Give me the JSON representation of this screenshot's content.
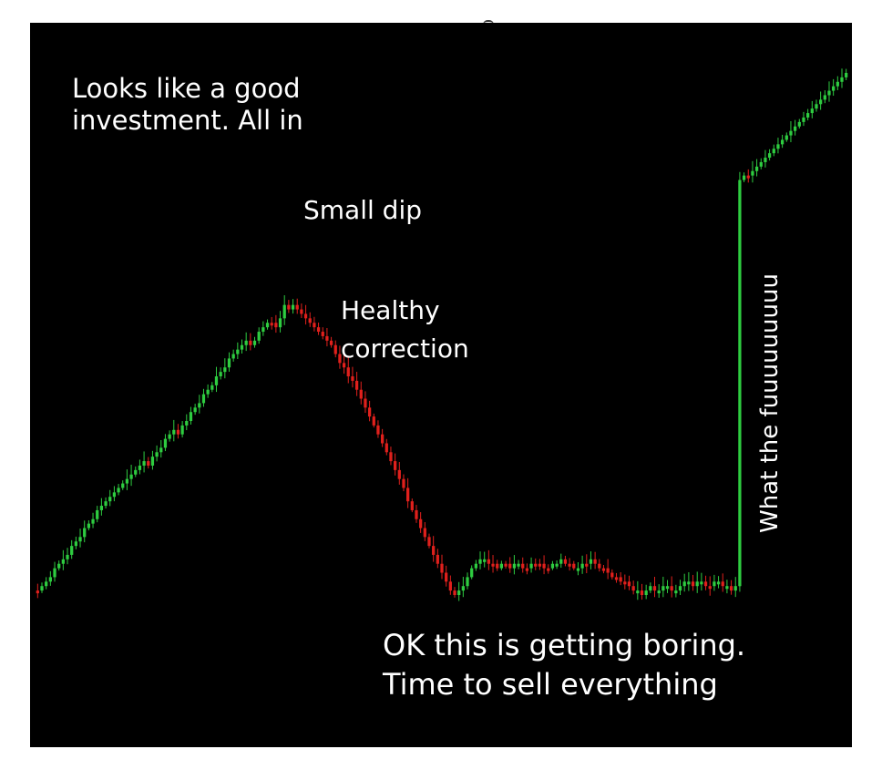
{
  "annotations": {
    "all_in": "Looks like a good\ninvestment. All in",
    "small_dip": "Small dip",
    "healthy_correction": "Healthy\ncorrection",
    "boring": "OK this is getting boring.\nTime to sell everything",
    "wtf": "What the fuuuuuuuuu"
  },
  "colors": {
    "background": "#000000",
    "up": "#2ecc40",
    "down": "#e0201c",
    "text": "#ffffff"
  },
  "chart_data": {
    "type": "candlestick",
    "grid": false,
    "axes_visible": false,
    "segments": [
      {
        "phase": "rise",
        "start": 0,
        "end": 0.62,
        "up_ratio": 0.78
      },
      {
        "phase": "peak",
        "start": 0.62,
        "end": 0.66,
        "up_ratio": 0.5
      },
      {
        "phase": "small dip",
        "start": 0.66,
        "end": 0.58,
        "up_ratio": 0.2
      },
      {
        "phase": "healthy correction",
        "start": 0.58,
        "end": 0.01,
        "up_ratio": 0.05
      },
      {
        "phase": "sideways",
        "start": 0.01,
        "end": 0.04,
        "up_ratio": 0.5
      },
      {
        "phase": "moon",
        "start": 0.04,
        "end": 1.0,
        "up_ratio": 0.9
      }
    ],
    "candles": [
      0.02,
      0.03,
      0.04,
      0.05,
      0.07,
      0.08,
      0.09,
      0.1,
      0.12,
      0.13,
      0.14,
      0.16,
      0.17,
      0.18,
      0.2,
      0.21,
      0.22,
      0.23,
      0.24,
      0.25,
      0.26,
      0.27,
      0.28,
      0.29,
      0.3,
      0.31,
      0.3,
      0.32,
      0.33,
      0.34,
      0.36,
      0.37,
      0.38,
      0.37,
      0.39,
      0.4,
      0.42,
      0.43,
      0.44,
      0.46,
      0.47,
      0.48,
      0.5,
      0.51,
      0.52,
      0.54,
      0.55,
      0.56,
      0.57,
      0.58,
      0.57,
      0.58,
      0.6,
      0.61,
      0.62,
      0.62,
      0.61,
      0.63,
      0.66,
      0.65,
      0.66,
      0.65,
      0.64,
      0.63,
      0.62,
      0.61,
      0.6,
      0.59,
      0.58,
      0.57,
      0.55,
      0.53,
      0.52,
      0.5,
      0.49,
      0.47,
      0.45,
      0.43,
      0.41,
      0.39,
      0.37,
      0.35,
      0.33,
      0.31,
      0.29,
      0.27,
      0.25,
      0.22,
      0.2,
      0.18,
      0.16,
      0.14,
      0.12,
      0.1,
      0.08,
      0.06,
      0.04,
      0.02,
      0.01,
      0.02,
      0.03,
      0.05,
      0.07,
      0.08,
      0.09,
      0.09,
      0.08,
      0.08,
      0.07,
      0.08,
      0.08,
      0.07,
      0.08,
      0.08,
      0.07,
      0.07,
      0.08,
      0.08,
      0.08,
      0.07,
      0.07,
      0.08,
      0.08,
      0.09,
      0.08,
      0.08,
      0.07,
      0.07,
      0.08,
      0.08,
      0.09,
      0.08,
      0.07,
      0.07,
      0.06,
      0.05,
      0.05,
      0.04,
      0.04,
      0.03,
      0.02,
      0.02,
      0.01,
      0.02,
      0.03,
      0.02,
      0.02,
      0.03,
      0.03,
      0.02,
      0.02,
      0.03,
      0.04,
      0.04,
      0.03,
      0.04,
      0.04,
      0.03,
      0.03,
      0.04,
      0.04,
      0.03,
      0.03,
      0.02,
      0.03,
      0.94,
      0.95,
      0.95,
      0.96,
      0.97,
      0.98,
      0.99,
      1.0,
      1.01,
      1.02,
      1.03,
      1.04,
      1.05,
      1.06,
      1.07,
      1.08,
      1.09,
      1.1,
      1.11,
      1.12,
      1.13,
      1.14,
      1.15,
      1.16,
      1.17,
      1.18
    ]
  }
}
